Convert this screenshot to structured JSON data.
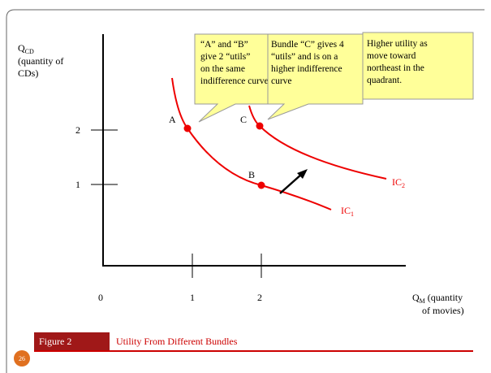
{
  "y_axis_label": {
    "main": "Q",
    "sub": "CD",
    "lines": [
      "(quantity of",
      "CDs)"
    ]
  },
  "x_axis_label": {
    "main": "Q",
    "sub": "M",
    "lines": [
      " (quantity",
      "of movies)"
    ]
  },
  "origin_label": "0",
  "y_ticks": [
    "2",
    "1"
  ],
  "x_ticks": [
    "1",
    "2"
  ],
  "points": [
    {
      "label": "A"
    },
    {
      "label": "C"
    },
    {
      "label": "B"
    }
  ],
  "curves": [
    {
      "main": "IC",
      "sub": "1"
    },
    {
      "main": "IC",
      "sub": "2"
    }
  ],
  "callouts": [
    {
      "lines": [
        "“A” and “B”",
        "give 2 “utils”",
        "on the same",
        "indifference curve"
      ]
    },
    {
      "lines": [
        "Bundle “C” gives 4",
        "“utils” and is on a",
        "higher indifference",
        "curve"
      ]
    },
    {
      "lines": [
        "Higher utility as",
        "move toward",
        "northeast in the",
        "quadrant."
      ]
    }
  ],
  "figure": {
    "number": "Figure 2",
    "caption": "Utility From Different Bundles"
  },
  "slide_number": "26"
}
